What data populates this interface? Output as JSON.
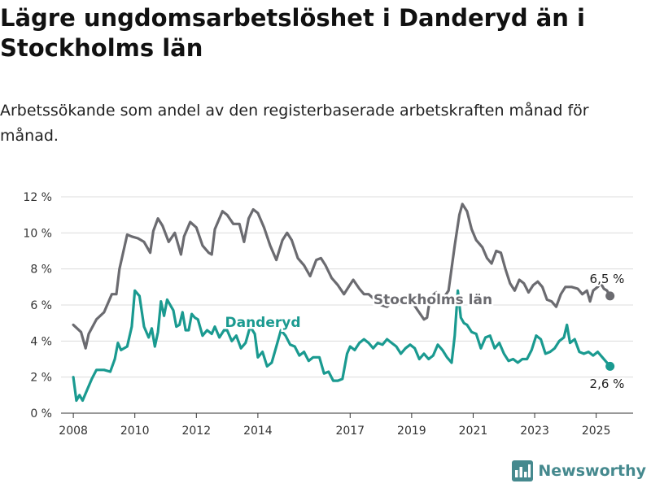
{
  "title": "Lägre ungdomsarbetslöshet i Danderyd än i Stockholms län",
  "subtitle": "Arbetssökande som andel av den registerbaserade arbetskraften månad för månad.",
  "brand": {
    "name": "Newsworthy"
  },
  "chart_data": {
    "type": "line",
    "ylim": [
      0,
      12
    ],
    "yticks": [
      0,
      2,
      4,
      6,
      8,
      10,
      12
    ],
    "ytick_labels": [
      "0 %",
      "2 %",
      "4 %",
      "6 %",
      "8 %",
      "10 %",
      "12 %"
    ],
    "xlim": [
      2007.6,
      2026.2
    ],
    "xticks": [
      2008,
      2010,
      2012,
      2014,
      2017,
      2019,
      2021,
      2023,
      2025
    ],
    "xtick_labels": [
      "2008",
      "2010",
      "2012",
      "2014",
      "2017",
      "2019",
      "2021",
      "2023",
      "2025"
    ],
    "grid": true,
    "series": [
      {
        "name": "Stockholms län",
        "color": "#6b6b70",
        "end_label": "6,5 %",
        "points": [
          [
            2008.0,
            4.9
          ],
          [
            2008.25,
            4.5
          ],
          [
            2008.4,
            3.6
          ],
          [
            2008.5,
            4.4
          ],
          [
            2008.75,
            5.2
          ],
          [
            2009.0,
            5.6
          ],
          [
            2009.25,
            6.6
          ],
          [
            2009.4,
            6.6
          ],
          [
            2009.5,
            8.0
          ],
          [
            2009.75,
            9.9
          ],
          [
            2009.9,
            9.8
          ],
          [
            2010.1,
            9.7
          ],
          [
            2010.3,
            9.5
          ],
          [
            2010.5,
            8.9
          ],
          [
            2010.6,
            10.1
          ],
          [
            2010.75,
            10.8
          ],
          [
            2010.9,
            10.4
          ],
          [
            2011.1,
            9.5
          ],
          [
            2011.3,
            10.0
          ],
          [
            2011.5,
            8.8
          ],
          [
            2011.6,
            9.8
          ],
          [
            2011.8,
            10.6
          ],
          [
            2012.0,
            10.3
          ],
          [
            2012.2,
            9.3
          ],
          [
            2012.4,
            8.9
          ],
          [
            2012.5,
            8.8
          ],
          [
            2012.6,
            10.2
          ],
          [
            2012.85,
            11.2
          ],
          [
            2013.0,
            11.0
          ],
          [
            2013.2,
            10.5
          ],
          [
            2013.4,
            10.5
          ],
          [
            2013.55,
            9.5
          ],
          [
            2013.7,
            10.8
          ],
          [
            2013.85,
            11.3
          ],
          [
            2014.0,
            11.1
          ],
          [
            2014.2,
            10.3
          ],
          [
            2014.4,
            9.3
          ],
          [
            2014.6,
            8.5
          ],
          [
            2014.8,
            9.6
          ],
          [
            2014.95,
            10.0
          ],
          [
            2015.1,
            9.6
          ],
          [
            2015.3,
            8.6
          ],
          [
            2015.5,
            8.2
          ],
          [
            2015.7,
            7.6
          ],
          [
            2015.9,
            8.5
          ],
          [
            2016.05,
            8.6
          ],
          [
            2016.2,
            8.2
          ],
          [
            2016.4,
            7.5
          ],
          [
            2016.6,
            7.1
          ],
          [
            2016.8,
            6.6
          ],
          [
            2016.95,
            7.0
          ],
          [
            2017.1,
            7.4
          ],
          [
            2017.3,
            6.9
          ],
          [
            2017.45,
            6.6
          ],
          [
            2017.6,
            6.6
          ],
          [
            2017.8,
            6.3
          ],
          [
            2018.0,
            6.0
          ],
          [
            2018.2,
            5.9
          ],
          [
            2018.4,
            6.2
          ],
          [
            2018.6,
            6.3
          ],
          [
            2018.8,
            6.5
          ],
          [
            2019.0,
            6.2
          ],
          [
            2019.2,
            5.7
          ],
          [
            2019.4,
            5.2
          ],
          [
            2019.5,
            5.3
          ],
          [
            2019.6,
            6.4
          ],
          [
            2019.8,
            6.7
          ],
          [
            2020.0,
            6.3
          ],
          [
            2020.2,
            6.8
          ],
          [
            2020.4,
            9.3
          ],
          [
            2020.55,
            11.0
          ],
          [
            2020.65,
            11.6
          ],
          [
            2020.8,
            11.2
          ],
          [
            2020.95,
            10.2
          ],
          [
            2021.1,
            9.6
          ],
          [
            2021.3,
            9.2
          ],
          [
            2021.45,
            8.6
          ],
          [
            2021.6,
            8.3
          ],
          [
            2021.75,
            9.0
          ],
          [
            2021.9,
            8.9
          ],
          [
            2022.05,
            8.0
          ],
          [
            2022.2,
            7.2
          ],
          [
            2022.35,
            6.8
          ],
          [
            2022.5,
            7.4
          ],
          [
            2022.65,
            7.2
          ],
          [
            2022.8,
            6.7
          ],
          [
            2022.95,
            7.1
          ],
          [
            2023.1,
            7.3
          ],
          [
            2023.25,
            7.0
          ],
          [
            2023.4,
            6.3
          ],
          [
            2023.55,
            6.2
          ],
          [
            2023.7,
            5.9
          ],
          [
            2023.85,
            6.6
          ],
          [
            2024.0,
            7.0
          ],
          [
            2024.2,
            7.0
          ],
          [
            2024.4,
            6.9
          ],
          [
            2024.55,
            6.6
          ],
          [
            2024.7,
            6.8
          ],
          [
            2024.8,
            6.2
          ],
          [
            2024.9,
            6.8
          ],
          [
            2025.05,
            7.0
          ],
          [
            2025.15,
            7.2
          ],
          [
            2025.25,
            6.9
          ],
          [
            2025.35,
            6.8
          ],
          [
            2025.45,
            6.5
          ]
        ]
      },
      {
        "name": "Danderyd",
        "color": "#1a9a90",
        "end_label": "2,6 %",
        "points": [
          [
            2008.0,
            2.0
          ],
          [
            2008.1,
            0.7
          ],
          [
            2008.2,
            1.0
          ],
          [
            2008.3,
            0.7
          ],
          [
            2008.45,
            1.3
          ],
          [
            2008.6,
            1.9
          ],
          [
            2008.75,
            2.4
          ],
          [
            2009.0,
            2.4
          ],
          [
            2009.2,
            2.3
          ],
          [
            2009.35,
            3.0
          ],
          [
            2009.45,
            3.9
          ],
          [
            2009.55,
            3.5
          ],
          [
            2009.75,
            3.7
          ],
          [
            2009.9,
            4.8
          ],
          [
            2010.0,
            6.8
          ],
          [
            2010.15,
            6.5
          ],
          [
            2010.3,
            4.8
          ],
          [
            2010.45,
            4.2
          ],
          [
            2010.55,
            4.7
          ],
          [
            2010.65,
            3.7
          ],
          [
            2010.75,
            4.5
          ],
          [
            2010.85,
            6.2
          ],
          [
            2010.95,
            5.4
          ],
          [
            2011.05,
            6.3
          ],
          [
            2011.15,
            6.0
          ],
          [
            2011.25,
            5.7
          ],
          [
            2011.35,
            4.8
          ],
          [
            2011.45,
            4.9
          ],
          [
            2011.55,
            5.6
          ],
          [
            2011.65,
            4.6
          ],
          [
            2011.75,
            4.6
          ],
          [
            2011.85,
            5.5
          ],
          [
            2011.95,
            5.3
          ],
          [
            2012.05,
            5.2
          ],
          [
            2012.2,
            4.3
          ],
          [
            2012.35,
            4.6
          ],
          [
            2012.5,
            4.4
          ],
          [
            2012.6,
            4.8
          ],
          [
            2012.75,
            4.2
          ],
          [
            2012.9,
            4.6
          ],
          [
            2013.0,
            4.6
          ],
          [
            2013.15,
            4.0
          ],
          [
            2013.3,
            4.3
          ],
          [
            2013.45,
            3.6
          ],
          [
            2013.6,
            3.9
          ],
          [
            2013.75,
            4.8
          ],
          [
            2013.9,
            4.4
          ],
          [
            2014.0,
            3.1
          ],
          [
            2014.15,
            3.4
          ],
          [
            2014.3,
            2.6
          ],
          [
            2014.45,
            2.8
          ],
          [
            2014.6,
            3.7
          ],
          [
            2014.75,
            4.6
          ],
          [
            2014.9,
            4.3
          ],
          [
            2015.05,
            3.8
          ],
          [
            2015.2,
            3.7
          ],
          [
            2015.35,
            3.2
          ],
          [
            2015.5,
            3.4
          ],
          [
            2015.65,
            2.9
          ],
          [
            2015.8,
            3.1
          ],
          [
            2016.0,
            3.1
          ],
          [
            2016.15,
            2.2
          ],
          [
            2016.3,
            2.3
          ],
          [
            2016.45,
            1.8
          ],
          [
            2016.6,
            1.8
          ],
          [
            2016.75,
            1.9
          ],
          [
            2016.9,
            3.3
          ],
          [
            2017.0,
            3.7
          ],
          [
            2017.15,
            3.5
          ],
          [
            2017.3,
            3.9
          ],
          [
            2017.45,
            4.1
          ],
          [
            2017.6,
            3.9
          ],
          [
            2017.75,
            3.6
          ],
          [
            2017.9,
            3.9
          ],
          [
            2018.05,
            3.8
          ],
          [
            2018.2,
            4.1
          ],
          [
            2018.35,
            3.9
          ],
          [
            2018.5,
            3.7
          ],
          [
            2018.65,
            3.3
          ],
          [
            2018.8,
            3.6
          ],
          [
            2018.95,
            3.8
          ],
          [
            2019.1,
            3.6
          ],
          [
            2019.25,
            3.0
          ],
          [
            2019.4,
            3.3
          ],
          [
            2019.55,
            3.0
          ],
          [
            2019.7,
            3.2
          ],
          [
            2019.85,
            3.8
          ],
          [
            2020.0,
            3.5
          ],
          [
            2020.15,
            3.1
          ],
          [
            2020.3,
            2.8
          ],
          [
            2020.4,
            4.3
          ],
          [
            2020.5,
            6.8
          ],
          [
            2020.6,
            5.3
          ],
          [
            2020.7,
            5.0
          ],
          [
            2020.8,
            4.9
          ],
          [
            2020.95,
            4.5
          ],
          [
            2021.1,
            4.4
          ],
          [
            2021.25,
            3.6
          ],
          [
            2021.4,
            4.2
          ],
          [
            2021.55,
            4.3
          ],
          [
            2021.7,
            3.6
          ],
          [
            2021.85,
            3.9
          ],
          [
            2022.0,
            3.3
          ],
          [
            2022.15,
            2.9
          ],
          [
            2022.3,
            3.0
          ],
          [
            2022.45,
            2.8
          ],
          [
            2022.6,
            3.0
          ],
          [
            2022.75,
            3.0
          ],
          [
            2022.9,
            3.5
          ],
          [
            2023.05,
            4.3
          ],
          [
            2023.2,
            4.1
          ],
          [
            2023.35,
            3.3
          ],
          [
            2023.5,
            3.4
          ],
          [
            2023.65,
            3.6
          ],
          [
            2023.8,
            4.0
          ],
          [
            2023.95,
            4.2
          ],
          [
            2024.05,
            4.9
          ],
          [
            2024.15,
            3.9
          ],
          [
            2024.3,
            4.1
          ],
          [
            2024.45,
            3.4
          ],
          [
            2024.6,
            3.3
          ],
          [
            2024.75,
            3.4
          ],
          [
            2024.9,
            3.2
          ],
          [
            2025.05,
            3.4
          ],
          [
            2025.2,
            3.1
          ],
          [
            2025.35,
            2.8
          ],
          [
            2025.45,
            2.6
          ]
        ]
      }
    ],
    "labels": [
      {
        "text": "Stockholms län",
        "series": "Stockholms län"
      },
      {
        "text": "Danderyd",
        "series": "Danderyd"
      }
    ]
  }
}
